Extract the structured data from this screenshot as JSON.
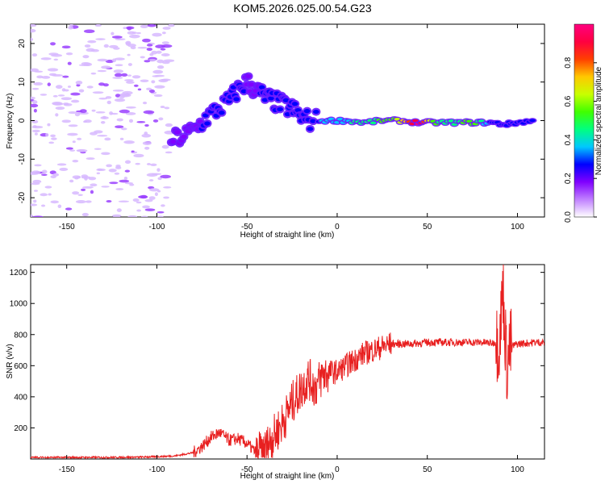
{
  "title": "KOM5.2026.025.00.54.G23",
  "chart_data": [
    {
      "type": "heatmap",
      "name": "spectrogram",
      "xlabel": "Height of straight line (km)",
      "ylabel": "Frequency (Hz)",
      "xlim": [
        -170,
        115
      ],
      "ylim": [
        -25,
        25
      ],
      "xticks": [
        -150,
        -100,
        -50,
        0,
        50,
        100
      ],
      "yticks": [
        -20,
        -10,
        0,
        10,
        20
      ],
      "colorbar": {
        "label": "Normalized spectral amplitude",
        "range": [
          0,
          1
        ],
        "ticks": [
          "0.0",
          "0.2",
          "0.4",
          "0.6",
          "0.8"
        ],
        "colors": [
          "#ffffff",
          "#c080ff",
          "#8000ff",
          "#0000ff",
          "#00c8ff",
          "#00ff80",
          "#40ff00",
          "#c8ff00",
          "#ffc800",
          "#ff4000",
          "#ff0040",
          "#ff0080"
        ]
      },
      "ridge": [
        {
          "x": -92,
          "y": -5,
          "amp": 0.18
        },
        {
          "x": -85,
          "y": -4,
          "amp": 0.2
        },
        {
          "x": -78,
          "y": -2,
          "amp": 0.22
        },
        {
          "x": -72,
          "y": 1,
          "amp": 0.24
        },
        {
          "x": -66,
          "y": 3,
          "amp": 0.26
        },
        {
          "x": -60,
          "y": 5,
          "amp": 0.28
        },
        {
          "x": -55,
          "y": 8,
          "amp": 0.25
        },
        {
          "x": -50,
          "y": 10,
          "amp": 0.22
        },
        {
          "x": -45,
          "y": 8,
          "amp": 0.22
        },
        {
          "x": -40,
          "y": 6,
          "amp": 0.24
        },
        {
          "x": -35,
          "y": 5,
          "amp": 0.26
        },
        {
          "x": -30,
          "y": 4,
          "amp": 0.28
        },
        {
          "x": -25,
          "y": 3,
          "amp": 0.26
        },
        {
          "x": -20,
          "y": 1,
          "amp": 0.24
        },
        {
          "x": -15,
          "y": 0,
          "amp": 0.28
        },
        {
          "x": -5,
          "y": 0,
          "amp": 0.34
        },
        {
          "x": 5,
          "y": 0,
          "amp": 0.4
        },
        {
          "x": 15,
          "y": -0.5,
          "amp": 0.45
        },
        {
          "x": 25,
          "y": 0,
          "amp": 0.52
        },
        {
          "x": 35,
          "y": 0,
          "amp": 0.62
        },
        {
          "x": 45,
          "y": -0.5,
          "amp": 1.0
        },
        {
          "x": 55,
          "y": -0.5,
          "amp": 0.5
        },
        {
          "x": 65,
          "y": -0.5,
          "amp": 0.45
        },
        {
          "x": 75,
          "y": -0.5,
          "amp": 0.55
        },
        {
          "x": 85,
          "y": -0.5,
          "amp": 0.3
        },
        {
          "x": 93,
          "y": -1,
          "amp": 0.25
        },
        {
          "x": 100,
          "y": -0.5,
          "amp": 0.26
        },
        {
          "x": 110,
          "y": 0,
          "amp": 0.3
        }
      ]
    },
    {
      "type": "line",
      "name": "snr",
      "xlabel": "Height of straight line (km)",
      "ylabel": "SNR (v/v)",
      "xlim": [
        -170,
        115
      ],
      "ylim": [
        0,
        1250
      ],
      "xticks": [
        -150,
        -100,
        -50,
        0,
        50,
        100
      ],
      "yticks": [
        200,
        400,
        600,
        800,
        1000,
        1200
      ],
      "series": [
        {
          "name": "SNR",
          "color": "#e82020",
          "x": [
            -170,
            -150,
            -130,
            -110,
            -100,
            -90,
            -80,
            -75,
            -70,
            -65,
            -60,
            -55,
            -50,
            -45,
            -40,
            -35,
            -30,
            -25,
            -20,
            -16,
            -12,
            -8,
            -4,
            0,
            5,
            10,
            15,
            20,
            25,
            30,
            40,
            50,
            60,
            70,
            80,
            86,
            90,
            92,
            94,
            96,
            100,
            105,
            110,
            115
          ],
          "y": [
            10,
            10,
            10,
            12,
            15,
            20,
            40,
            80,
            140,
            170,
            120,
            130,
            100,
            40,
            60,
            150,
            240,
            360,
            450,
            520,
            460,
            540,
            560,
            560,
            600,
            640,
            680,
            700,
            720,
            740,
            740,
            750,
            750,
            750,
            750,
            745,
            760,
            1100,
            600,
            720,
            740,
            745,
            750,
            750
          ]
        }
      ]
    }
  ]
}
